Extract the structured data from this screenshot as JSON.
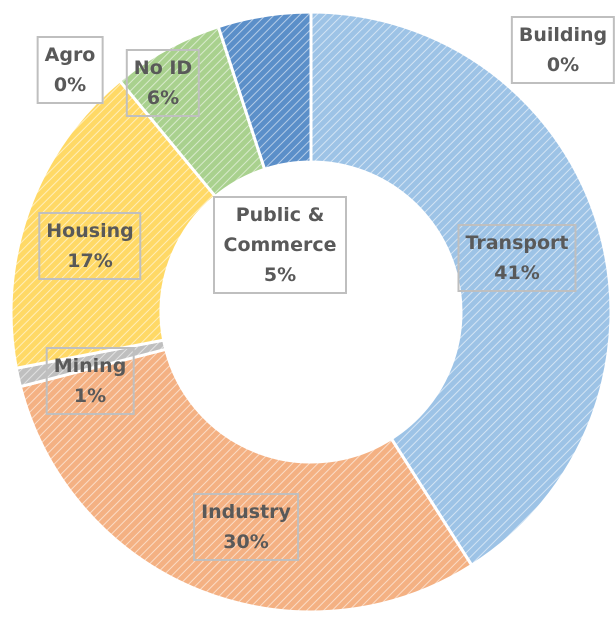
{
  "chart_data": {
    "type": "donut",
    "categories": [
      "Transport",
      "Industry",
      "Mining",
      "Housing",
      "Agro",
      "No ID",
      "Public & Commerce",
      "Building"
    ],
    "values": [
      41,
      30,
      1,
      17,
      0,
      6,
      5,
      0
    ],
    "value_labels": [
      "41%",
      "30%",
      "1%",
      "17%",
      "0%",
      "6%",
      "5%",
      "0%"
    ],
    "colors": [
      "#9dc3e6",
      "#f4b183",
      "#bfbfbf",
      "#ffd966",
      "#c9c9c9",
      "#a9d18e",
      "#5b8fc9",
      "#8faadc"
    ]
  }
}
